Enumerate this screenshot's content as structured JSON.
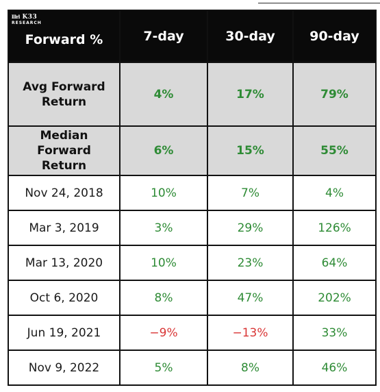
{
  "header": {
    "logo_line1": "K33",
    "logo_line2": "RESEARCH",
    "columns": [
      "Forward %",
      "7-day",
      "30-day",
      "90-day"
    ]
  },
  "summary": [
    {
      "label": [
        "Avg Forward",
        "Return"
      ],
      "values": [
        "4%",
        "17%",
        "79%"
      ]
    },
    {
      "label": [
        "Median",
        "Forward",
        "Return"
      ],
      "values": [
        "6%",
        "15%",
        "55%"
      ]
    }
  ],
  "rows": [
    {
      "date": "Nov 24, 2018",
      "values": [
        "10%",
        "7%",
        "4%"
      ]
    },
    {
      "date": "Mar 3, 2019",
      "values": [
        "3%",
        "29%",
        "126%"
      ]
    },
    {
      "date": "Mar 13, 2020",
      "values": [
        "10%",
        "23%",
        "64%"
      ]
    },
    {
      "date": "Oct 6, 2020",
      "values": [
        "8%",
        "47%",
        "202%"
      ]
    },
    {
      "date": "Jun 19, 2021",
      "values": [
        "-9%",
        "-13%",
        "33%"
      ]
    },
    {
      "date": "Nov 9, 2022",
      "values": [
        "5%",
        "8%",
        "46%"
      ]
    }
  ],
  "colors": {
    "positive": "#2e8b35",
    "negative": "#d93636",
    "header_bg": "#0a0a0a",
    "summary_bg": "#d9d9d9"
  }
}
